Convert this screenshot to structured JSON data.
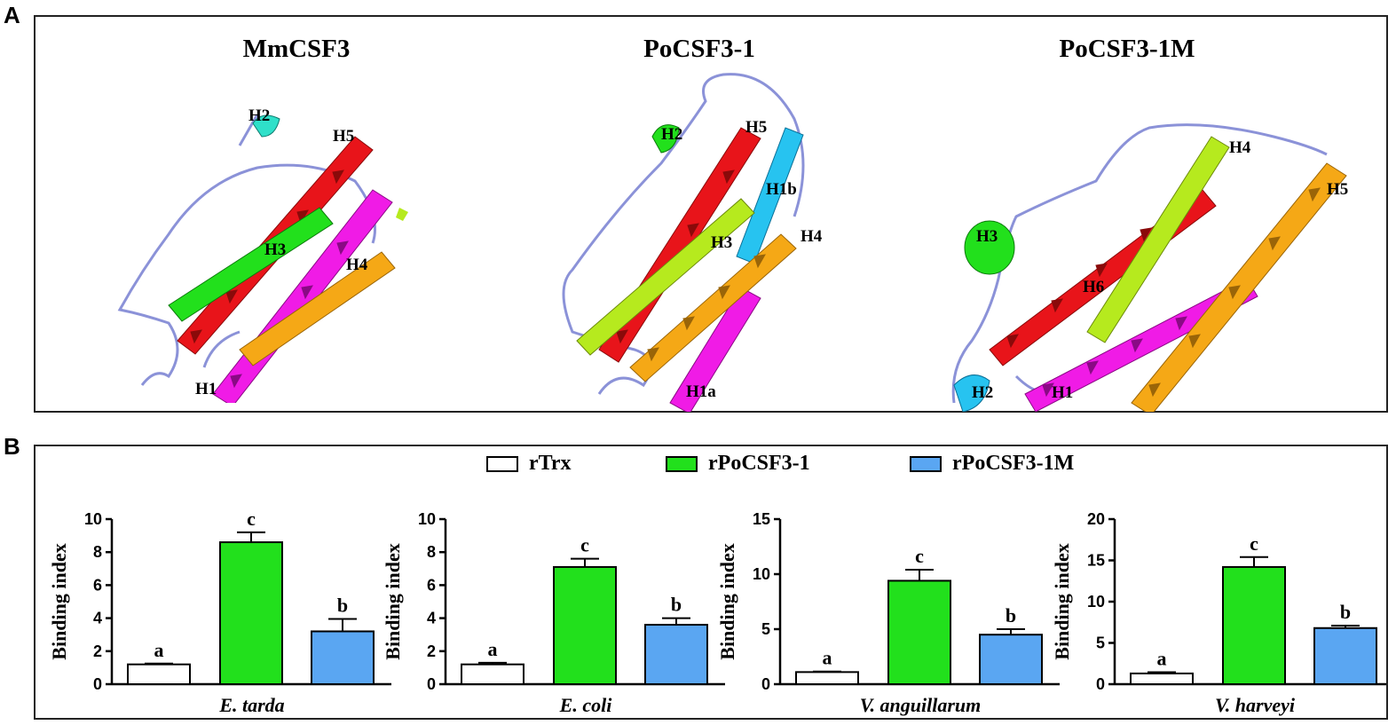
{
  "panel_labels": {
    "a": "A",
    "b": "B"
  },
  "structures": [
    {
      "title": "MmCSF3",
      "helices": [
        "H2",
        "H5",
        "H3",
        "H4",
        "H1"
      ]
    },
    {
      "title": "PoCSF3-1",
      "helices": [
        "H2",
        "H5",
        "H1b",
        "H3",
        "H4",
        "H1a"
      ]
    },
    {
      "title": "PoCSF3-1M",
      "helices": [
        "H4",
        "H5",
        "H3",
        "H6",
        "H2",
        "H1"
      ]
    }
  ],
  "colors": {
    "red": "#e8141a",
    "green": "#22e01c",
    "magenta": "#f01be6",
    "orange": "#f5a816",
    "cyan": "#27c3f0",
    "teal": "#2fe0c9",
    "lime": "#b6ea1e",
    "coil": "#8b92d8",
    "white_bar": "#ffffff",
    "green_bar": "#22e01c",
    "blue_bar": "#5aa6f2"
  },
  "legend": [
    {
      "label": "rTrx",
      "color": "#ffffff"
    },
    {
      "label": "rPoCSF3-1",
      "color": "#22e01c"
    },
    {
      "label": "rPoCSF3-1M",
      "color": "#5aa6f2"
    }
  ],
  "chart_data": [
    {
      "type": "bar",
      "xlabel": "E. tarda",
      "ylabel": "Binding index",
      "ylim": [
        0,
        10
      ],
      "yticks": [
        0,
        2,
        4,
        6,
        8,
        10
      ],
      "series": [
        {
          "name": "rTrx",
          "value": 1.2,
          "error": 0.05,
          "letter": "a"
        },
        {
          "name": "rPoCSF3-1",
          "value": 8.6,
          "error": 0.6,
          "letter": "c"
        },
        {
          "name": "rPoCSF3-1M",
          "value": 3.2,
          "error": 0.75,
          "letter": "b"
        }
      ]
    },
    {
      "type": "bar",
      "xlabel": "E. coli",
      "ylabel": "Binding index",
      "ylim": [
        0,
        10
      ],
      "yticks": [
        0,
        2,
        4,
        6,
        8,
        10
      ],
      "series": [
        {
          "name": "rTrx",
          "value": 1.2,
          "error": 0.1,
          "letter": "a"
        },
        {
          "name": "rPoCSF3-1",
          "value": 7.1,
          "error": 0.5,
          "letter": "c"
        },
        {
          "name": "rPoCSF3-1M",
          "value": 3.6,
          "error": 0.4,
          "letter": "b"
        }
      ]
    },
    {
      "type": "bar",
      "xlabel": "V. anguillarum",
      "ylabel": "Binding index",
      "ylim": [
        0,
        15
      ],
      "yticks": [
        0,
        5,
        10,
        15
      ],
      "series": [
        {
          "name": "rTrx",
          "value": 1.1,
          "error": 0.05,
          "letter": "a"
        },
        {
          "name": "rPoCSF3-1",
          "value": 9.4,
          "error": 1.0,
          "letter": "c"
        },
        {
          "name": "rPoCSF3-1M",
          "value": 4.5,
          "error": 0.5,
          "letter": "b"
        }
      ]
    },
    {
      "type": "bar",
      "xlabel": "V. harveyi",
      "ylabel": "Binding index",
      "ylim": [
        0,
        20
      ],
      "yticks": [
        0,
        5,
        10,
        15,
        20
      ],
      "series": [
        {
          "name": "rTrx",
          "value": 1.3,
          "error": 0.15,
          "letter": "a"
        },
        {
          "name": "rPoCSF3-1",
          "value": 14.2,
          "error": 1.2,
          "letter": "c"
        },
        {
          "name": "rPoCSF3-1M",
          "value": 6.8,
          "error": 0.3,
          "letter": "b"
        }
      ]
    }
  ]
}
